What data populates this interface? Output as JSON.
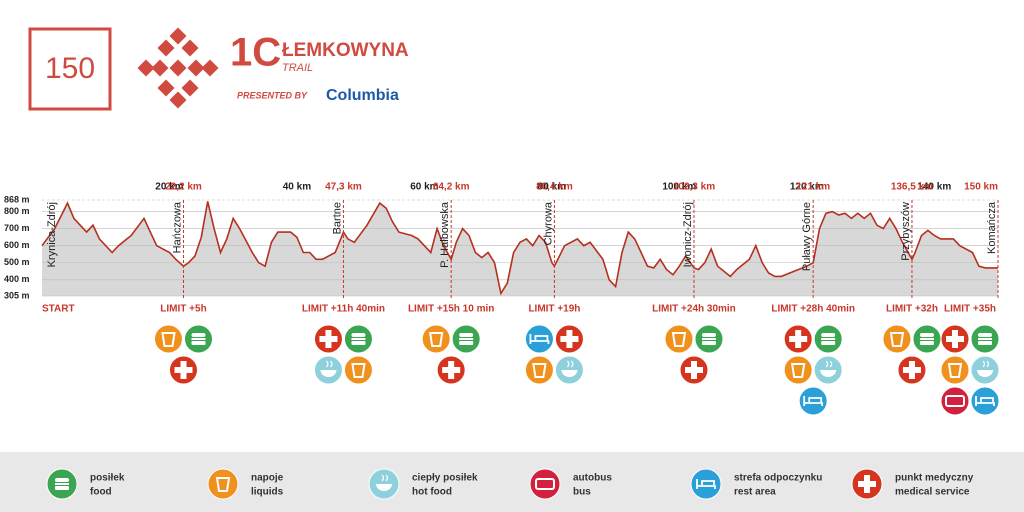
{
  "logo": {
    "distance": "150",
    "mark": "1C",
    "name": "ŁEMKOWYNA",
    "sub": "TRAIL",
    "presented": "PRESENTED BY",
    "sponsor": "Columbia"
  },
  "chart_data": {
    "type": "area",
    "line_color": "#b5301f",
    "fill_color": "#d8d8d8",
    "grid": true,
    "xlim": [
      0,
      150
    ],
    "ylim": [
      305,
      868
    ],
    "yticks": [
      {
        "value": 305,
        "label": "305 m"
      },
      {
        "value": 400,
        "label": "400 m"
      },
      {
        "value": 500,
        "label": "500 m"
      },
      {
        "value": 600,
        "label": "600 m"
      },
      {
        "value": 700,
        "label": "700 m"
      },
      {
        "value": 800,
        "label": "800 m"
      },
      {
        "value": 868,
        "label": "868 m"
      }
    ],
    "xticks": [
      {
        "value": 20,
        "label": "20 km"
      },
      {
        "value": 40,
        "label": "40 km"
      },
      {
        "value": 60,
        "label": "60 km"
      },
      {
        "value": 80,
        "label": "80 km"
      },
      {
        "value": 100,
        "label": "100 km"
      },
      {
        "value": 120,
        "label": "120 km"
      },
      {
        "value": 140,
        "label": "140 km"
      }
    ],
    "x": [
      0,
      2,
      4,
      5,
      7,
      8,
      9,
      11,
      12,
      14,
      16,
      17,
      18,
      20,
      21,
      22.2,
      23,
      24,
      25,
      26,
      27,
      28,
      29,
      30,
      31,
      33,
      34,
      35,
      36,
      37,
      39,
      40,
      41,
      42,
      43,
      44,
      46,
      47.3,
      48,
      49,
      51,
      53,
      54,
      55,
      56,
      58,
      59,
      60,
      61,
      62,
      63,
      64.2,
      65,
      66,
      67,
      68,
      69,
      70,
      71,
      72,
      73,
      74,
      75,
      76,
      77,
      78,
      79,
      80,
      80.4,
      82,
      84,
      85,
      86,
      88,
      89,
      90,
      91,
      92,
      93,
      94,
      95,
      96,
      97,
      98,
      99,
      100,
      101,
      102.3,
      103,
      104,
      105,
      106,
      108,
      109,
      111,
      112,
      113,
      114,
      115,
      116,
      118,
      120,
      121,
      122,
      123,
      124,
      125,
      126,
      127,
      128,
      129,
      130,
      131,
      132,
      133,
      134,
      135,
      136.5,
      137,
      138,
      139,
      140,
      141,
      143,
      144,
      146,
      147,
      148,
      150
    ],
    "values": [
      600,
      700,
      850,
      760,
      680,
      720,
      640,
      560,
      600,
      660,
      760,
      680,
      600,
      560,
      520,
      480,
      500,
      540,
      650,
      860,
      700,
      560,
      640,
      760,
      700,
      560,
      500,
      480,
      620,
      680,
      680,
      650,
      560,
      560,
      520,
      520,
      560,
      680,
      640,
      620,
      720,
      850,
      820,
      740,
      680,
      660,
      640,
      600,
      560,
      700,
      600,
      520,
      620,
      700,
      660,
      560,
      530,
      560,
      500,
      320,
      380,
      560,
      620,
      640,
      600,
      660,
      620,
      500,
      480,
      600,
      640,
      600,
      620,
      520,
      400,
      360,
      560,
      680,
      640,
      560,
      480,
      470,
      520,
      460,
      430,
      480,
      540,
      470,
      460,
      500,
      580,
      480,
      420,
      460,
      520,
      600,
      500,
      440,
      420,
      420,
      450,
      480,
      500,
      700,
      790,
      800,
      780,
      790,
      760,
      790,
      760,
      790,
      720,
      700,
      760,
      700,
      620,
      520,
      560,
      660,
      690,
      660,
      640,
      640,
      600,
      560,
      480,
      470,
      470
    ],
    "checkpoints": [
      {
        "name": "Krynica-Zdrój",
        "limit": "START",
        "services": []
      },
      {
        "name": "Hańczowa",
        "km": {
          "value": 22.2,
          "label": "22,2 km"
        },
        "limit": "LIMIT +5h",
        "services": [
          "liquids",
          "food",
          "medical service"
        ]
      },
      {
        "name": "Bartne",
        "km": {
          "value": 47.3,
          "label": "47,3 km"
        },
        "limit": "LIMIT +11h 40min",
        "services": [
          "medical service",
          "food",
          "hot food",
          "liquids"
        ]
      },
      {
        "name": "P. Hałbowska",
        "km": {
          "value": 64.2,
          "label": "64,2 km"
        },
        "limit": "LIMIT +15h 10 min",
        "services": [
          "liquids",
          "food",
          "medical service"
        ]
      },
      {
        "name": "Chyrowa",
        "km": {
          "value": 80.4,
          "label": "80,4 km"
        },
        "limit": "LIMIT +19h",
        "services": [
          "rest area",
          "medical service",
          "liquids",
          "hot food"
        ]
      },
      {
        "name": "Iwonicz-Zdrój",
        "km": {
          "value": 102.3,
          "label": "102,3 km"
        },
        "limit": "LIMIT +24h 30min",
        "services": [
          "liquids",
          "food",
          "medical service"
        ]
      },
      {
        "name": "Puławy Górne",
        "km": {
          "value": 121,
          "label": "121 km"
        },
        "limit": "LIMIT +28h 40min",
        "services": [
          "medical service",
          "food",
          "liquids",
          "hot food",
          "rest area"
        ]
      },
      {
        "name": "Przybyszów",
        "km": {
          "value": 136.5,
          "label": "136,5 km"
        },
        "limit": "LIMIT +32h",
        "services": [
          "liquids",
          "food",
          "medical service"
        ]
      },
      {
        "name": "Komańcza",
        "km": {
          "value": 150,
          "label": "150 km"
        },
        "limit": "LIMIT +35h",
        "services": [
          "medical service",
          "food",
          "liquids",
          "hot food",
          "bus",
          "rest area"
        ]
      }
    ]
  },
  "legend": [
    {
      "pl": "posiłek",
      "en": "food",
      "color": "#3aa651"
    },
    {
      "pl": "napoje",
      "en": "liquids",
      "color": "#f0911e"
    },
    {
      "pl": "ciepły posiłek",
      "en": "hot food",
      "color": "#8ed0dc"
    },
    {
      "pl": "autobus",
      "en": "bus",
      "color": "#d1213f"
    },
    {
      "pl": "strefa odpoczynku",
      "en": "rest area",
      "color": "#2a9fd8"
    },
    {
      "pl": "punkt medyczny",
      "en": "medical service",
      "color": "#d5341f"
    }
  ]
}
